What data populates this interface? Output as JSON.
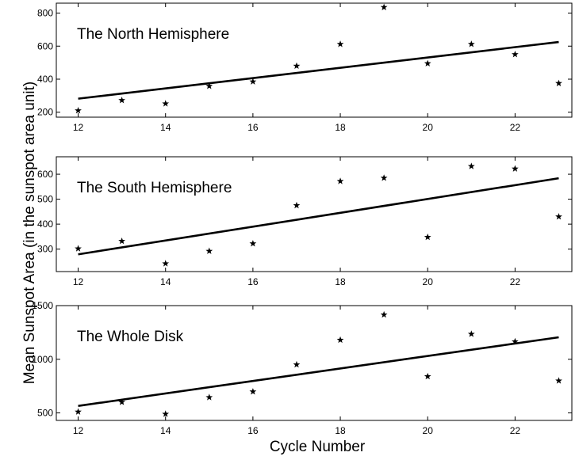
{
  "colors": {
    "axes": "#000000",
    "markers": "#000000",
    "fit_line": "#000000",
    "background": "#ffffff"
  },
  "figure": {
    "ylabel": "Mean Sunspot Area (in the sunspot area unit)",
    "xlabel": "Cycle Number"
  },
  "chart_data": [
    {
      "type": "scatter",
      "title": "The North Hemisphere",
      "x": [
        12,
        13,
        14,
        15,
        16,
        17,
        18,
        19,
        20,
        21,
        22,
        23
      ],
      "series": [
        {
          "values": [
            210,
            272,
            252,
            358,
            385,
            480,
            612,
            835,
            495,
            612,
            550,
            375
          ]
        }
      ],
      "fit_line": {
        "x": [
          12,
          23
        ],
        "y": [
          282,
          625
        ]
      },
      "xlim": [
        11.5,
        23.3
      ],
      "ylim": [
        170,
        860
      ],
      "xticks": [
        12,
        14,
        16,
        18,
        20,
        22
      ],
      "yticks": [
        200,
        400,
        600,
        800
      ],
      "xtick_labels": [
        "12",
        "14",
        "16",
        "18",
        "20",
        "22"
      ],
      "ytick_labels": [
        "200",
        "400",
        "600",
        "800"
      ],
      "grid": false
    },
    {
      "type": "scatter",
      "title": "The South Hemisphere",
      "x": [
        12,
        13,
        14,
        15,
        16,
        17,
        18,
        19,
        20,
        21,
        22,
        23
      ],
      "series": [
        {
          "values": [
            302,
            332,
            242,
            292,
            322,
            475,
            572,
            585,
            348,
            632,
            622,
            430
          ]
        }
      ],
      "fit_line": {
        "x": [
          12,
          23
        ],
        "y": [
          279,
          584
        ]
      },
      "xlim": [
        11.5,
        23.3
      ],
      "ylim": [
        210,
        670
      ],
      "xticks": [
        12,
        14,
        16,
        18,
        20,
        22
      ],
      "yticks": [
        300,
        400,
        500,
        600
      ],
      "xtick_labels": [
        "12",
        "14",
        "16",
        "18",
        "20",
        "22"
      ],
      "ytick_labels": [
        "300",
        "400",
        "500",
        "600"
      ],
      "grid": false
    },
    {
      "type": "scatter",
      "title": "The Whole Disk",
      "x": [
        12,
        13,
        14,
        15,
        16,
        17,
        18,
        19,
        20,
        21,
        22,
        23
      ],
      "series": [
        {
          "values": [
            510,
            600,
            490,
            645,
            698,
            950,
            1180,
            1415,
            840,
            1235,
            1165,
            800
          ]
        }
      ],
      "fit_line": {
        "x": [
          12,
          23
        ],
        "y": [
          565,
          1205
        ]
      },
      "xlim": [
        11.5,
        23.3
      ],
      "ylim": [
        430,
        1500
      ],
      "xticks": [
        12,
        14,
        16,
        18,
        20,
        22
      ],
      "yticks": [
        500,
        1000,
        1500
      ],
      "xtick_labels": [
        "12",
        "14",
        "16",
        "18",
        "20",
        "22"
      ],
      "ytick_labels": [
        "500",
        "1000",
        "1500"
      ],
      "grid": false
    }
  ]
}
